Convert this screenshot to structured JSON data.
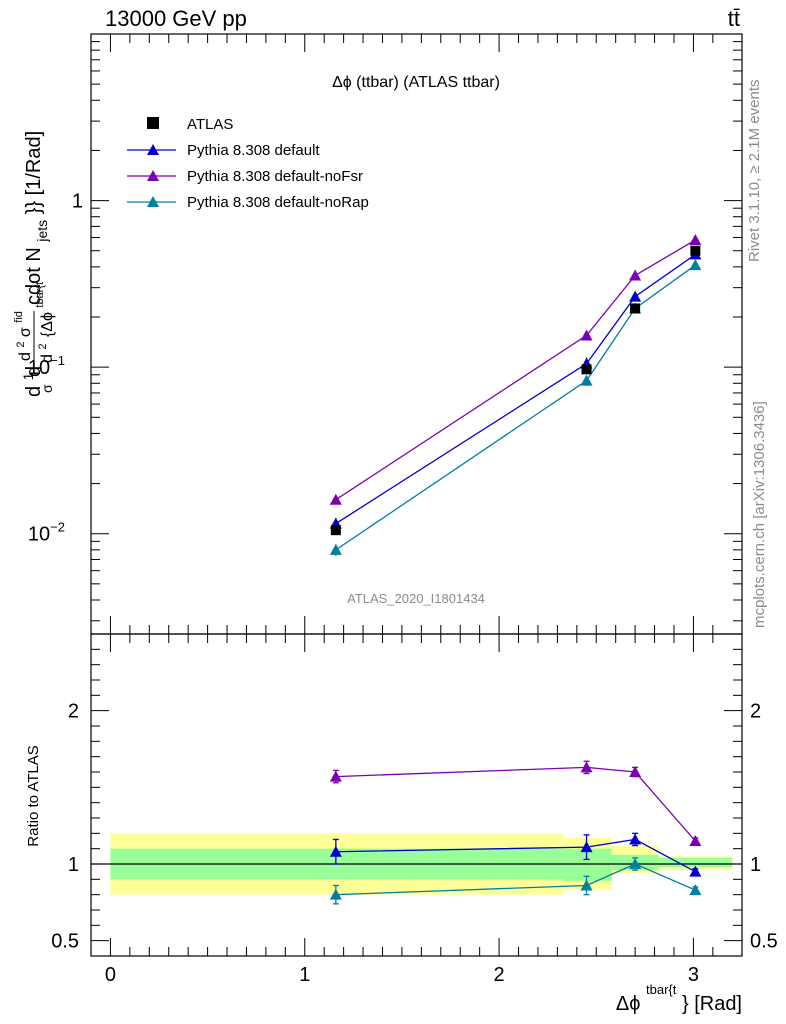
{
  "header": {
    "left": "13000 GeV pp",
    "right": "tt̄"
  },
  "side": {
    "rivet": "Rivet 3.1.10, ≥ 2.1M events",
    "mcplots": "mcplots.cern.ch [arXiv:1306.3436]"
  },
  "chart_data": [
    {
      "type": "line",
      "title": "Δϕ (ttbar) (ATLAS ttbar)",
      "ylabel": "d1/σ d d²σ^fid / d² {Δϕ^tbar{t}} cdot N_jets}} [1/Rad]",
      "ylabel_parts": {
        "a": "d",
        "b": "1",
        "c": "σ",
        "d": "d",
        "e": "d",
        "f": "2",
        "g": "σ",
        "h": "fid",
        "i": "cdot N",
        "j": "jets",
        "k": "}} [1/Rad]",
        "l": "d",
        "m": "2",
        "n": "{Δϕ",
        "o": "tbar{t"
      },
      "yscale": "log",
      "ylim": [
        0.0025,
        10
      ],
      "xlim": [
        -0.1,
        3.25
      ],
      "yticks": [
        {
          "v": 0.01,
          "base": "10",
          "exp": "−2"
        },
        {
          "v": 0.1,
          "base": "10",
          "exp": "−1"
        },
        {
          "v": 1,
          "label": "1"
        }
      ],
      "watermark": "ATLAS_2020_I1801434",
      "legend": [
        "ATLAS",
        "Pythia 8.308 default",
        "Pythia 8.308 default-noFsr",
        "Pythia 8.308 default-noRap"
      ],
      "legend_position": "top-left",
      "x": [
        1.16,
        2.45,
        2.7,
        3.01
      ],
      "data": {
        "name": "ATLAS",
        "values": [
          0.0105,
          0.097,
          0.225,
          0.5
        ],
        "color": "#000000"
      },
      "series": [
        {
          "name": "Pythia 8.308 default",
          "values": [
            0.0115,
            0.105,
            0.265,
            0.475
          ],
          "err": [
            0.08,
            0.09,
            0.03,
            0.02
          ],
          "color": "#0000cc"
        },
        {
          "name": "Pythia 8.308 default-noFsr",
          "values": [
            0.016,
            0.155,
            0.355,
            0.58
          ],
          "err": [
            0.03,
            0.03,
            0.02,
            0.02
          ],
          "color": "#7b00b4"
        },
        {
          "name": "Pythia 8.308 default-noRap",
          "values": [
            0.008,
            0.083,
            0.225,
            0.41
          ],
          "err": [
            0.08,
            0.07,
            0.03,
            0.02
          ],
          "color": "#0080a0"
        }
      ]
    },
    {
      "type": "line",
      "ylabel": "Ratio to ATLAS",
      "xlabel": "Δϕ^tbar{t}} [Rad]",
      "xlabel_parts": {
        "a": "Δϕ",
        "b": "tbar{t",
        "c": "} [Rad]"
      },
      "ylim": [
        0.4,
        2.5
      ],
      "xlim": [
        -0.1,
        3.25
      ],
      "xticks": [
        "0",
        "1",
        "2",
        "3"
      ],
      "yticks": [
        "0.5",
        "1",
        "2"
      ],
      "x": [
        1.16,
        2.45,
        2.7,
        3.01
      ],
      "bands": [
        {
          "x0": 0.0,
          "x1": 2.33,
          "y1_lo": 0.9,
          "y1_hi": 1.1,
          "y2_lo": 0.8,
          "y2_hi": 1.2
        },
        {
          "x0": 2.33,
          "x1": 2.58,
          "y1_lo": 0.89,
          "y1_hi": 1.1,
          "y2_lo": 0.83,
          "y2_hi": 1.17
        },
        {
          "x0": 2.58,
          "x1": 2.82,
          "y1_lo": 0.96,
          "y1_hi": 1.06,
          "y2_lo": 0.94,
          "y2_hi": 1.12
        },
        {
          "x0": 2.82,
          "x1": 3.2,
          "y1_lo": 0.98,
          "y1_hi": 1.04,
          "y2_lo": 0.96,
          "y2_hi": 1.05
        }
      ],
      "series": [
        {
          "name": "Pythia 8.308 default",
          "values": [
            1.08,
            1.11,
            1.16,
            0.95
          ],
          "err": [
            0.08,
            0.08,
            0.04,
            0.02
          ],
          "color": "#0000cc"
        },
        {
          "name": "Pythia 8.308 default-noFsr",
          "values": [
            1.57,
            1.63,
            1.6,
            1.15
          ],
          "err": [
            0.04,
            0.04,
            0.03,
            0.02
          ],
          "color": "#7b00b4"
        },
        {
          "name": "Pythia 8.308 default-noRap",
          "values": [
            0.8,
            0.86,
            1.0,
            0.83
          ],
          "err": [
            0.06,
            0.06,
            0.04,
            0.02
          ],
          "color": "#0080a0"
        }
      ],
      "colors": {
        "band_outer": "#ffff99",
        "band_inner": "#99ff99"
      }
    }
  ]
}
